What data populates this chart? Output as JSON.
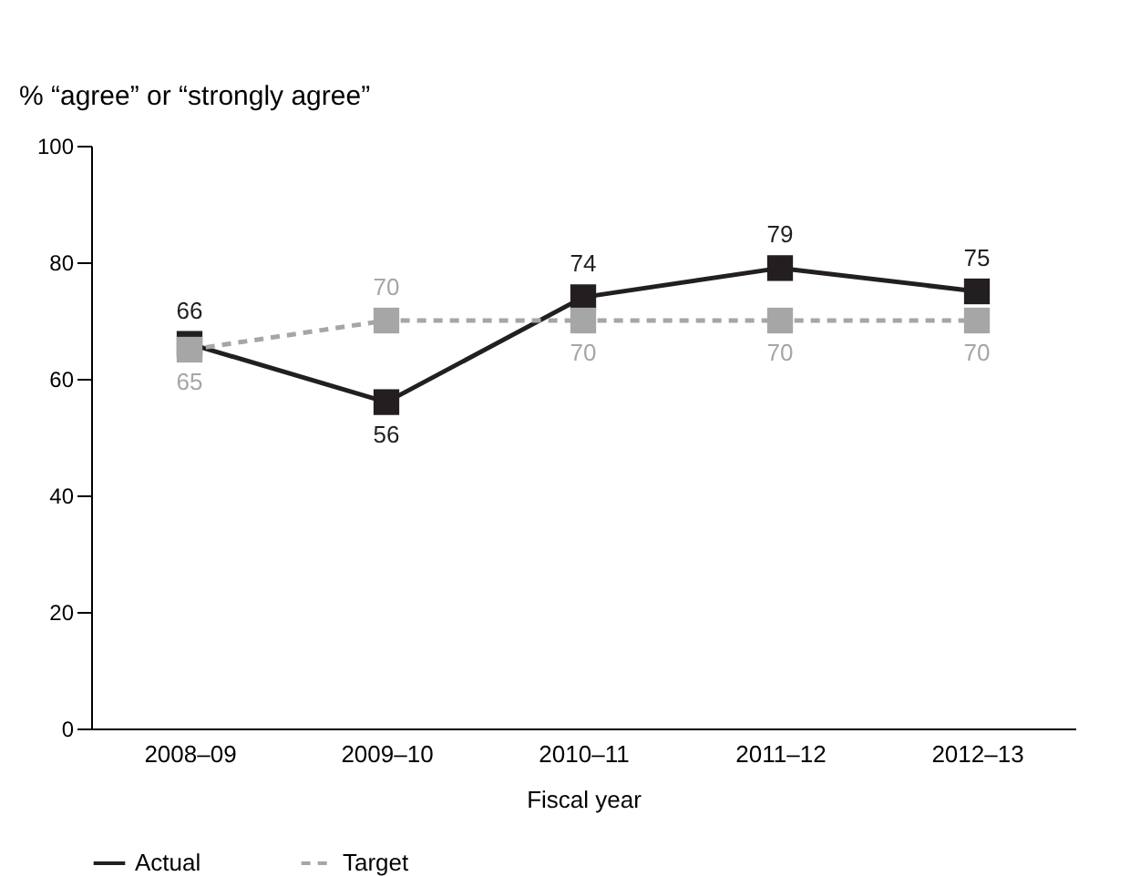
{
  "chart_data": {
    "type": "line",
    "ylabel": "% “agree” or “strongly agree”",
    "xlabel": "Fiscal year",
    "categories": [
      "2008–09",
      "2009–10",
      "2010–11",
      "2011–12",
      "2012–13"
    ],
    "series": [
      {
        "name": "Actual",
        "color": "#231f20",
        "values": [
          66,
          56,
          74,
          79,
          75
        ],
        "line_style": "solid"
      },
      {
        "name": "Target",
        "color": "#a6a6a6",
        "values": [
          65,
          70,
          70,
          70,
          70
        ],
        "line_style": "dashed"
      }
    ],
    "ylim": [
      0,
      100
    ],
    "yticks": [
      0,
      20,
      40,
      60,
      80,
      100
    ],
    "marker": "square",
    "data_labels": true,
    "legend": "bottom",
    "grid": false
  }
}
